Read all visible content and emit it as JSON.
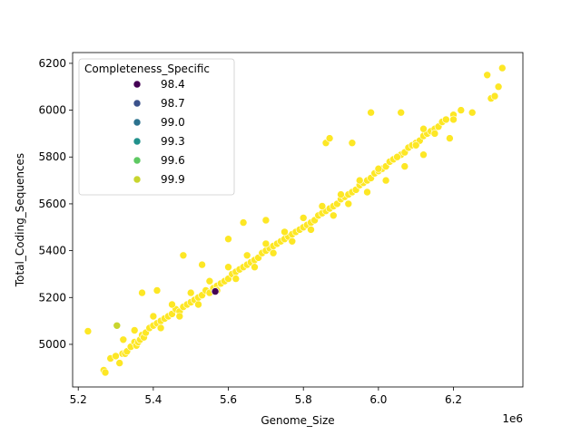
{
  "chart_data": {
    "type": "scatter",
    "title": "",
    "xlabel": "Genome_Size",
    "ylabel": "Total_Coding_Sequences",
    "x_offset_label": "1e6",
    "x_scale": 1000000,
    "xlim": [
      5.185,
      6.385
    ],
    "ylim": [
      4818,
      6246
    ],
    "x_ticks": [
      5.2,
      5.4,
      5.6,
      5.8,
      6.0,
      6.2
    ],
    "x_tick_labels": [
      "5.2",
      "5.4",
      "5.6",
      "5.8",
      "6.0",
      "6.2"
    ],
    "y_ticks": [
      5000,
      5200,
      5400,
      5600,
      5800,
      6000,
      6200
    ],
    "y_tick_labels": [
      "5000",
      "5200",
      "5400",
      "5600",
      "5800",
      "6000",
      "6200"
    ],
    "grid": false,
    "legend": {
      "title": "Completeness_Specific",
      "placement": "upper-left",
      "entries": [
        {
          "label": "98.4",
          "color": "#440154"
        },
        {
          "label": "98.7",
          "color": "#3b528b"
        },
        {
          "label": "99.0",
          "color": "#2c728e"
        },
        {
          "label": "99.3",
          "color": "#21918c"
        },
        {
          "label": "99.6",
          "color": "#5ec962"
        },
        {
          "label": "99.9",
          "color": "#c8d52e"
        }
      ]
    },
    "color_scale": {
      "min": 98.4,
      "max": 100.0,
      "colormap": "viridis"
    },
    "series": [
      {
        "hue": 100.0,
        "color": "#fde725",
        "x": [
          5.226,
          5.268,
          5.272,
          5.286,
          5.3,
          5.31,
          5.318,
          5.325,
          5.33,
          5.34,
          5.35,
          5.355,
          5.36,
          5.365,
          5.37,
          5.375,
          5.38,
          5.39,
          5.4,
          5.41,
          5.42,
          5.43,
          5.44,
          5.45,
          5.46,
          5.47,
          5.48,
          5.49,
          5.5,
          5.51,
          5.52,
          5.53,
          5.54,
          5.55,
          5.56,
          5.57,
          5.58,
          5.59,
          5.6,
          5.61,
          5.62,
          5.63,
          5.64,
          5.65,
          5.66,
          5.67,
          5.68,
          5.69,
          5.7,
          5.71,
          5.72,
          5.73,
          5.74,
          5.75,
          5.76,
          5.77,
          5.78,
          5.79,
          5.8,
          5.81,
          5.82,
          5.83,
          5.84,
          5.85,
          5.86,
          5.87,
          5.88,
          5.89,
          5.9,
          5.91,
          5.92,
          5.93,
          5.94,
          5.95,
          5.96,
          5.97,
          5.98,
          5.99,
          6.0,
          6.01,
          6.02,
          6.03,
          6.04,
          6.05,
          6.06,
          6.07,
          6.08,
          6.09,
          6.1,
          6.11,
          6.12,
          6.13,
          6.14,
          6.15,
          6.16,
          6.17,
          6.18,
          6.2,
          6.22,
          6.25,
          6.29,
          6.3,
          6.31,
          6.32,
          6.33,
          5.37,
          5.41,
          5.48,
          5.53,
          5.6,
          5.64,
          5.7,
          5.86,
          5.87,
          5.93,
          5.98,
          6.06,
          6.12,
          6.19,
          5.32,
          5.35,
          5.4,
          5.45,
          5.5,
          5.55,
          5.6,
          5.65,
          5.7,
          5.75,
          5.8,
          5.85,
          5.9,
          5.95,
          6.0,
          6.05,
          6.1,
          6.15,
          6.2,
          5.42,
          5.47,
          5.52,
          5.57,
          5.62,
          5.67,
          5.72,
          5.77,
          5.82,
          5.88,
          5.92,
          5.97,
          6.02,
          6.07,
          6.12
        ],
        "y": [
          5056,
          4890,
          4880,
          4940,
          4950,
          4920,
          4960,
          4960,
          4970,
          4990,
          5010,
          4995,
          5010,
          5020,
          5040,
          5030,
          5050,
          5070,
          5080,
          5090,
          5100,
          5110,
          5120,
          5130,
          5150,
          5140,
          5160,
          5170,
          5180,
          5190,
          5200,
          5210,
          5230,
          5220,
          5240,
          5250,
          5260,
          5270,
          5280,
          5300,
          5310,
          5320,
          5330,
          5340,
          5350,
          5360,
          5370,
          5390,
          5400,
          5410,
          5420,
          5430,
          5440,
          5450,
          5460,
          5470,
          5480,
          5490,
          5500,
          5510,
          5520,
          5530,
          5550,
          5560,
          5570,
          5580,
          5590,
          5600,
          5620,
          5630,
          5640,
          5650,
          5660,
          5680,
          5690,
          5700,
          5710,
          5730,
          5740,
          5750,
          5760,
          5780,
          5790,
          5800,
          5810,
          5820,
          5840,
          5850,
          5860,
          5870,
          5890,
          5900,
          5910,
          5920,
          5930,
          5950,
          5960,
          5980,
          6000,
          5990,
          6150,
          6050,
          6060,
          6100,
          6180,
          5220,
          5230,
          5380,
          5340,
          5450,
          5520,
          5530,
          5860,
          5880,
          5860,
          5990,
          5990,
          5920,
          5880,
          5020,
          5060,
          5120,
          5170,
          5220,
          5270,
          5330,
          5380,
          5430,
          5480,
          5540,
          5590,
          5640,
          5700,
          5750,
          5800,
          5850,
          5900,
          5960,
          5070,
          5120,
          5170,
          5230,
          5280,
          5330,
          5390,
          5440,
          5490,
          5550,
          5600,
          5650,
          5700,
          5760,
          5810
        ]
      },
      {
        "hue": 99.9,
        "color": "#c8d52e",
        "x": [
          5.303
        ],
        "y": [
          5080
        ]
      },
      {
        "hue": 98.4,
        "color": "#440154",
        "x": [
          5.565
        ],
        "y": [
          5226
        ]
      }
    ]
  }
}
